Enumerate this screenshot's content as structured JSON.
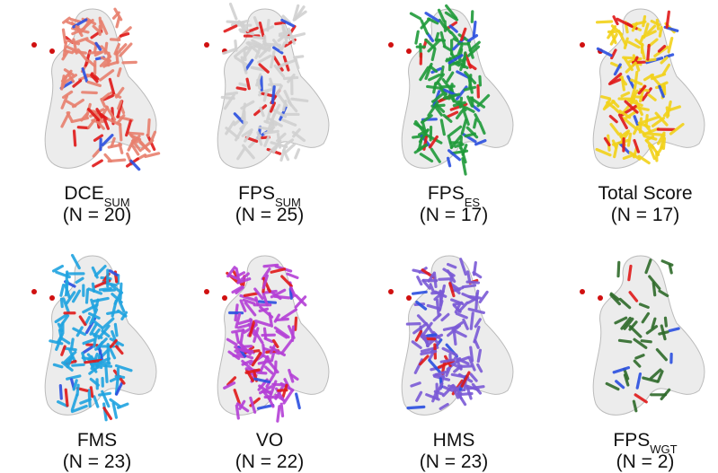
{
  "panels": [
    {
      "name": "DCE",
      "subscript": "SUM",
      "count": "(N = 20)",
      "color": "#e8806e"
    },
    {
      "name": "FPS",
      "subscript": "SUM",
      "count": "(N = 25)",
      "color": "#d0d0d0"
    },
    {
      "name": "FPS",
      "subscript": "ES",
      "count": "(N = 17)",
      "color": "#1f9a3a"
    },
    {
      "name": "Total Score",
      "count": "(N = 17)",
      "color": "#f2d21a"
    },
    {
      "name": "FMS",
      "count": "(N = 23)",
      "color": "#1fa3e0"
    },
    {
      "name": "VO",
      "count": "(N = 22)",
      "color": "#b43fd6"
    },
    {
      "name": "HMS",
      "count": "(N = 23)",
      "color": "#7a5ad6"
    },
    {
      "name": "FPS",
      "subscript": "WGT",
      "count": "(N = 2)",
      "color": "#2f6a2a"
    }
  ]
}
